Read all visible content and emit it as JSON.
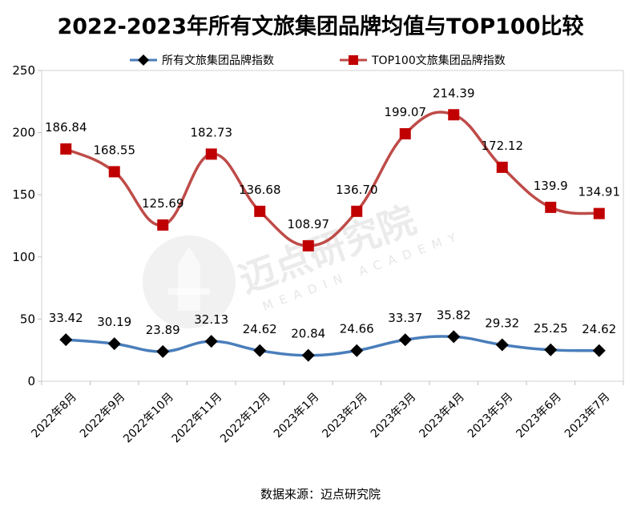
{
  "chart_data": {
    "type": "line",
    "title": "2022-2023年所有文旅集团品牌均值与TOP100比较",
    "categories": [
      "2022年8月",
      "2022年9月",
      "2022年10月",
      "2022年11月",
      "2022年12月",
      "2023年1月",
      "2023年2月",
      "2023年3月",
      "2023年4月",
      "2023年5月",
      "2023年6月",
      "2023年7月"
    ],
    "series": [
      {
        "name": "所有文旅集团品牌指数",
        "color": "#4a7ebb",
        "marker": "diamond",
        "values": [
          33.42,
          30.19,
          23.89,
          32.13,
          24.62,
          20.84,
          24.66,
          33.37,
          35.82,
          29.32,
          25.25,
          24.62
        ],
        "labels": [
          "33.42",
          "30.19",
          "23.89",
          "32.13",
          "24.62",
          "20.84",
          "24.66",
          "33.37",
          "35.82",
          "29.32",
          "25.25",
          "24.62"
        ]
      },
      {
        "name": "TOP100文旅集团品牌指数",
        "color": "#be4b48",
        "marker": "square",
        "values": [
          186.84,
          168.55,
          125.69,
          182.73,
          136.68,
          108.97,
          136.7,
          199.07,
          214.39,
          172.12,
          139.9,
          134.91
        ],
        "labels": [
          "186.84",
          "168.55",
          "125.69",
          "182.73",
          "136.68",
          "108.97",
          "136.70",
          "199.07",
          "214.39",
          "172.12",
          "139.9",
          "134.91"
        ]
      }
    ],
    "ylim": [
      0,
      250
    ],
    "yticks": [
      "0",
      "50",
      "100",
      "150",
      "200",
      "250"
    ],
    "xlabel": "",
    "ylabel": "",
    "legend": "top"
  },
  "source": "数据来源：迈点研究院",
  "watermark": {
    "text": "迈点研究院",
    "subtext": "MEADIN ACADEMY"
  }
}
